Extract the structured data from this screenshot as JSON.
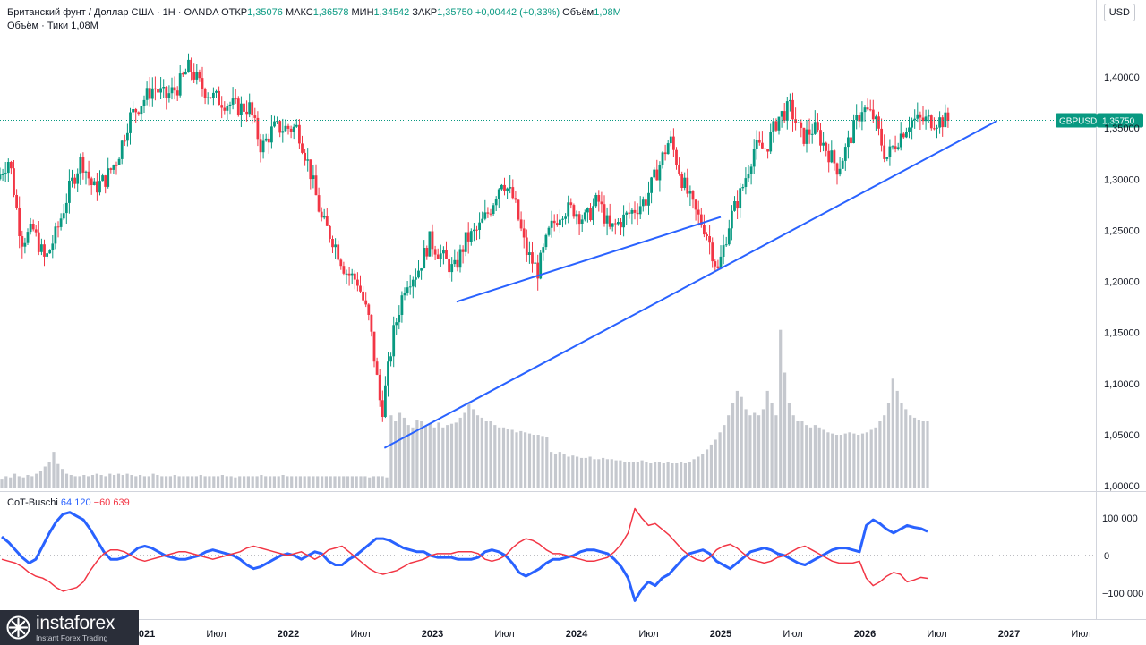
{
  "header": {
    "instrument": "Британский фунт / Доллар США · 1Н · OANDA",
    "open_label": "ОТКР",
    "open": "1,35076",
    "high_label": "МАКС",
    "high": "1,36578",
    "low_label": "МИН",
    "low": "1,34542",
    "close_label": "ЗАКР",
    "close": "1,35750",
    "change": "+0,00442 (+0,33%)",
    "volume_label": "Объём",
    "volume": "1,08M"
  },
  "volume_legend": {
    "label": "Объём · Тики",
    "value": "1,08M"
  },
  "indicator_legend": {
    "label": "CoT-Buschi",
    "value1": "64 120",
    "value2": "−60 639"
  },
  "currency": "USD",
  "price_tag": {
    "symbol": "GBPUSD",
    "value": "1,35750"
  },
  "logo": {
    "name": "instaforex",
    "tagline": "Instant Forex Trading"
  },
  "colors": {
    "up": "#089981",
    "down": "#f23645",
    "trend": "#2962ff",
    "cot_long": "#2962ff",
    "cot_short": "#f23645",
    "volume": "#b2b5be"
  },
  "chart_data": [
    {
      "type": "candlestick",
      "symbol": "GBPUSD",
      "timeframe": "1Н",
      "ylim": [
        1.0,
        1.43
      ],
      "y_ticks": [
        "1,40000",
        "1,35000",
        "1,30000",
        "1,25000",
        "1,20000",
        "1,15000",
        "1,10000",
        "1,05000",
        "1,00000"
      ],
      "x_ticks": [
        "Июл",
        "2021",
        "Июл",
        "2022",
        "Июл",
        "2023",
        "Июл",
        "2024",
        "Июл",
        "2025",
        "Июл",
        "2026",
        "Июл",
        "2027",
        "Июл"
      ],
      "last_price": 1.3575,
      "close_path": [
        [
          "2020-01",
          1.3
        ],
        [
          "2020-02",
          1.32
        ],
        [
          "2020-03",
          1.24
        ],
        [
          "2020-04",
          1.25
        ],
        [
          "2020-05",
          1.22
        ],
        [
          "2020-06",
          1.25
        ],
        [
          "2020-07",
          1.29
        ],
        [
          "2020-08",
          1.32
        ],
        [
          "2020-09",
          1.29
        ],
        [
          "2020-10",
          1.3
        ],
        [
          "2020-11",
          1.32
        ],
        [
          "2020-12",
          1.36
        ],
        [
          "2021-02",
          1.39
        ],
        [
          "2021-03",
          1.38
        ],
        [
          "2021-04",
          1.39
        ],
        [
          "2021-05",
          1.41
        ],
        [
          "2021-06",
          1.39
        ],
        [
          "2021-07",
          1.38
        ],
        [
          "2021-09",
          1.37
        ],
        [
          "2021-10",
          1.37
        ],
        [
          "2021-11",
          1.33
        ],
        [
          "2021-12",
          1.35
        ],
        [
          "2022-01",
          1.35
        ],
        [
          "2022-02",
          1.35
        ],
        [
          "2022-03",
          1.31
        ],
        [
          "2022-04",
          1.26
        ],
        [
          "2022-05",
          1.24
        ],
        [
          "2022-06",
          1.21
        ],
        [
          "2022-07",
          1.2
        ],
        [
          "2022-08",
          1.16
        ],
        [
          "2022-09",
          1.07
        ],
        [
          "2022-10",
          1.15
        ],
        [
          "2022-11",
          1.2
        ],
        [
          "2022-12",
          1.21
        ],
        [
          "2023-01",
          1.24
        ],
        [
          "2023-03",
          1.21
        ],
        [
          "2023-04",
          1.24
        ],
        [
          "2023-05",
          1.25
        ],
        [
          "2023-06",
          1.27
        ],
        [
          "2023-07",
          1.3
        ],
        [
          "2023-08",
          1.28
        ],
        [
          "2023-09",
          1.23
        ],
        [
          "2023-10",
          1.21
        ],
        [
          "2023-11",
          1.25
        ],
        [
          "2023-12",
          1.27
        ],
        [
          "2024-01",
          1.27
        ],
        [
          "2024-02",
          1.26
        ],
        [
          "2024-03",
          1.28
        ],
        [
          "2024-04",
          1.25
        ],
        [
          "2024-05",
          1.26
        ],
        [
          "2024-06",
          1.27
        ],
        [
          "2024-07",
          1.28
        ],
        [
          "2024-08",
          1.31
        ],
        [
          "2024-09",
          1.34
        ],
        [
          "2024-10",
          1.3
        ],
        [
          "2024-11",
          1.27
        ],
        [
          "2024-12",
          1.25
        ],
        [
          "2025-01",
          1.21
        ],
        [
          "2025-02",
          1.26
        ],
        [
          "2025-03",
          1.29
        ],
        [
          "2025-04",
          1.33
        ],
        [
          "2025-05",
          1.33
        ],
        [
          "2025-06",
          1.36
        ],
        [
          "2025-07",
          1.37
        ],
        [
          "2025-08",
          1.34
        ],
        [
          "2025-09",
          1.35
        ],
        [
          "2025-10",
          1.33
        ],
        [
          "2025-11",
          1.31
        ],
        [
          "2025-12",
          1.34
        ],
        [
          "2026-01",
          1.37
        ],
        [
          "2026-02",
          1.36
        ],
        [
          "2026-03",
          1.32
        ],
        [
          "2026-04",
          1.34
        ],
        [
          "2026-05",
          1.3575
        ]
      ],
      "trendlines": [
        {
          "from": [
            "2022-09",
            1.037
          ],
          "to": [
            "2026-12",
            1.357
          ]
        },
        {
          "from": [
            "2023-03",
            1.18
          ],
          "to": [
            "2025-01",
            1.263
          ]
        }
      ],
      "volume_series": {
        "name": "Объём",
        "ylim": [
          0,
          2.2
        ],
        "values": [
          0.08,
          0.1,
          0.09,
          0.12,
          0.1,
          0.09,
          0.11,
          0.1,
          0.12,
          0.14,
          0.18,
          0.22,
          0.3,
          0.2,
          0.16,
          0.12,
          0.11,
          0.1,
          0.1,
          0.11,
          0.1,
          0.11,
          0.12,
          0.11,
          0.1,
          0.12,
          0.11,
          0.12,
          0.11,
          0.12,
          0.11,
          0.1,
          0.11,
          0.1,
          0.1,
          0.12,
          0.11,
          0.1,
          0.1,
          0.1,
          0.11,
          0.1,
          0.1,
          0.1,
          0.1,
          0.1,
          0.11,
          0.1,
          0.1,
          0.1,
          0.1,
          0.11,
          0.1,
          0.1,
          0.09,
          0.1,
          0.1,
          0.1,
          0.1,
          0.1,
          0.11,
          0.1,
          0.1,
          0.1,
          0.1,
          0.11,
          0.1,
          0.1,
          0.1,
          0.1,
          0.1,
          0.1,
          0.1,
          0.1,
          0.1,
          0.1,
          0.1,
          0.1,
          0.1,
          0.1,
          0.1,
          0.1,
          0.1,
          0.1,
          0.1,
          0.09,
          0.1,
          0.1,
          0.1,
          0.09,
          0.6,
          0.55,
          0.62,
          0.58,
          0.52,
          0.5,
          0.56,
          0.55,
          0.51,
          0.53,
          0.5,
          0.54,
          0.5,
          0.52,
          0.53,
          0.54,
          0.58,
          0.62,
          0.7,
          0.65,
          0.6,
          0.58,
          0.55,
          0.55,
          0.52,
          0.5,
          0.5,
          0.49,
          0.48,
          0.46,
          0.47,
          0.46,
          0.45,
          0.44,
          0.44,
          0.43,
          0.42,
          0.3,
          0.28,
          0.3,
          0.28,
          0.26,
          0.27,
          0.26,
          0.25,
          0.25,
          0.26,
          0.24,
          0.24,
          0.25,
          0.24,
          0.24,
          0.23,
          0.23,
          0.22,
          0.22,
          0.22,
          0.22,
          0.23,
          0.22,
          0.21,
          0.22,
          0.22,
          0.21,
          0.22,
          0.21,
          0.21,
          0.22,
          0.21,
          0.22,
          0.24,
          0.26,
          0.28,
          0.32,
          0.36,
          0.4,
          0.46,
          0.52,
          0.6,
          0.7,
          0.8,
          0.75,
          0.65,
          0.6,
          0.62,
          0.6,
          0.65,
          0.8,
          0.7,
          0.6,
          1.3,
          0.95,
          0.7,
          0.6,
          0.55,
          0.55,
          0.52,
          0.5,
          0.52,
          0.5,
          0.48,
          0.46,
          0.45,
          0.44,
          0.44,
          0.45,
          0.46,
          0.45,
          0.44,
          0.45,
          0.46,
          0.48,
          0.5,
          0.55,
          0.6,
          0.7,
          0.9,
          0.8,
          0.7,
          0.65,
          0.6,
          0.58,
          0.56,
          0.55,
          0.55
        ]
      }
    },
    {
      "type": "line",
      "title": "CoT-Buschi",
      "ylim": [
        -150000,
        150000
      ],
      "y_ticks": [
        "100 000",
        "0",
        "−100 000"
      ],
      "series": [
        {
          "name": "64 120",
          "values": [
            50000,
            35000,
            15000,
            -5000,
            -20000,
            -10000,
            25000,
            60000,
            90000,
            110000,
            115000,
            105000,
            95000,
            70000,
            40000,
            10000,
            -10000,
            -10000,
            -5000,
            5000,
            20000,
            25000,
            20000,
            10000,
            0,
            -5000,
            -10000,
            -10000,
            -5000,
            0,
            10000,
            15000,
            10000,
            5000,
            0,
            -10000,
            -25000,
            -35000,
            -30000,
            -20000,
            -10000,
            0,
            5000,
            0,
            -10000,
            0,
            10000,
            5000,
            -15000,
            -25000,
            -25000,
            -10000,
            0,
            15000,
            30000,
            45000,
            45000,
            40000,
            30000,
            20000,
            15000,
            10000,
            10000,
            0,
            -5000,
            -5000,
            -5000,
            -10000,
            -10000,
            -10000,
            -5000,
            10000,
            15000,
            10000,
            0,
            -20000,
            -45000,
            -55000,
            -45000,
            -35000,
            -20000,
            -10000,
            -10000,
            -5000,
            0,
            10000,
            15000,
            15000,
            10000,
            5000,
            -10000,
            -30000,
            -60000,
            -120000,
            -90000,
            -70000,
            -80000,
            -60000,
            -50000,
            -30000,
            -10000,
            5000,
            10000,
            15000,
            5000,
            -15000,
            -25000,
            -35000,
            -20000,
            -5000,
            10000,
            15000,
            20000,
            15000,
            5000,
            0,
            -10000,
            -20000,
            -25000,
            -15000,
            -5000,
            5000,
            15000,
            20000,
            20000,
            15000,
            10000,
            80000,
            95000,
            85000,
            70000,
            60000,
            70000,
            80000,
            75000,
            72000,
            64120
          ]
        },
        {
          "name": "−60 639",
          "values": [
            -10000,
            -15000,
            -20000,
            -30000,
            -45000,
            -55000,
            -60000,
            -70000,
            -85000,
            -95000,
            -90000,
            -85000,
            -70000,
            -40000,
            -15000,
            5000,
            15000,
            15000,
            10000,
            0,
            -10000,
            -15000,
            -10000,
            -5000,
            0,
            5000,
            10000,
            10000,
            5000,
            0,
            -5000,
            -10000,
            -5000,
            0,
            5000,
            10000,
            20000,
            25000,
            20000,
            15000,
            10000,
            5000,
            0,
            5000,
            10000,
            0,
            -10000,
            0,
            15000,
            20000,
            25000,
            10000,
            -5000,
            -20000,
            -35000,
            -45000,
            -50000,
            -45000,
            -40000,
            -30000,
            -20000,
            -15000,
            -10000,
            0,
            5000,
            5000,
            5000,
            10000,
            10000,
            10000,
            5000,
            -10000,
            -15000,
            -10000,
            0,
            20000,
            35000,
            45000,
            40000,
            30000,
            15000,
            5000,
            5000,
            0,
            -5000,
            -10000,
            -15000,
            -15000,
            -10000,
            -5000,
            10000,
            30000,
            60000,
            125000,
            100000,
            80000,
            85000,
            70000,
            55000,
            35000,
            15000,
            0,
            -10000,
            -15000,
            -5000,
            15000,
            25000,
            30000,
            20000,
            5000,
            -10000,
            -15000,
            -20000,
            -15000,
            -5000,
            0,
            10000,
            20000,
            25000,
            15000,
            5000,
            -5000,
            -15000,
            -20000,
            -20000,
            -20000,
            -15000,
            -60000,
            -80000,
            -70000,
            -55000,
            -45000,
            -50000,
            -70000,
            -65000,
            -58000,
            -60639
          ]
        }
      ]
    }
  ]
}
